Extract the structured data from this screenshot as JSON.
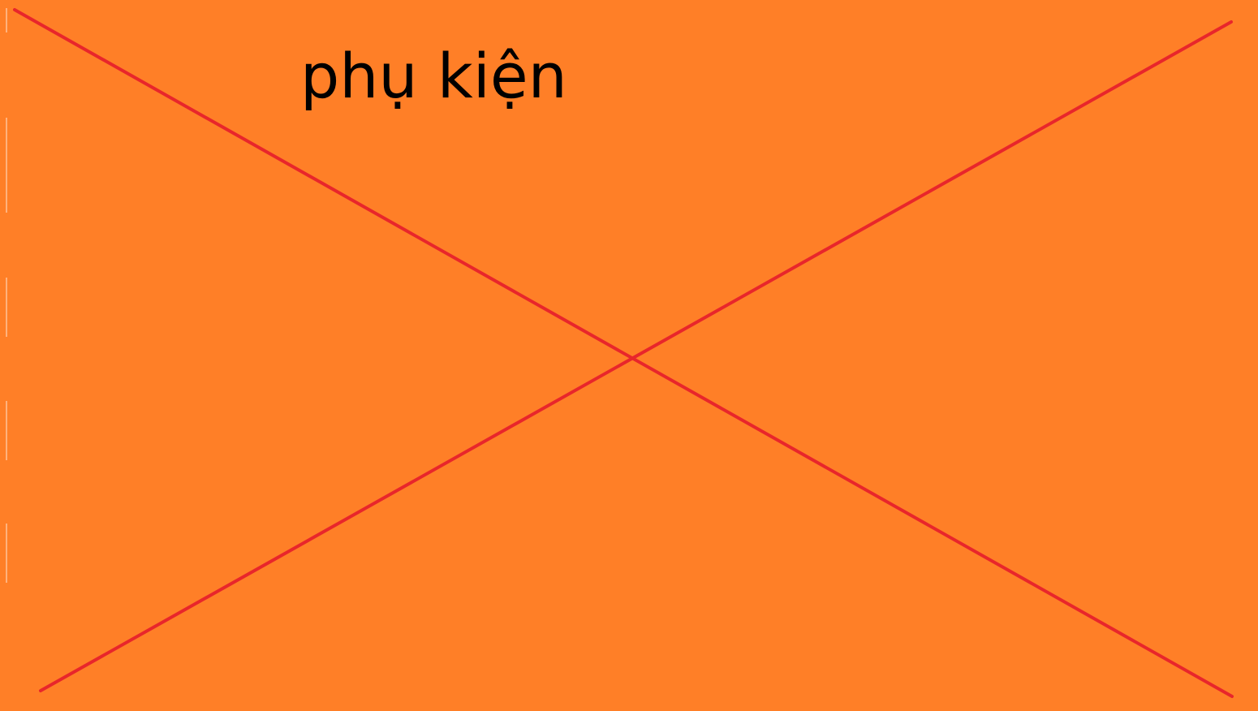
{
  "placeholder": {
    "label": "phụ kiện",
    "background_color": "#ff7f27",
    "cross_color": "#e8262b",
    "text_color": "#000000"
  }
}
